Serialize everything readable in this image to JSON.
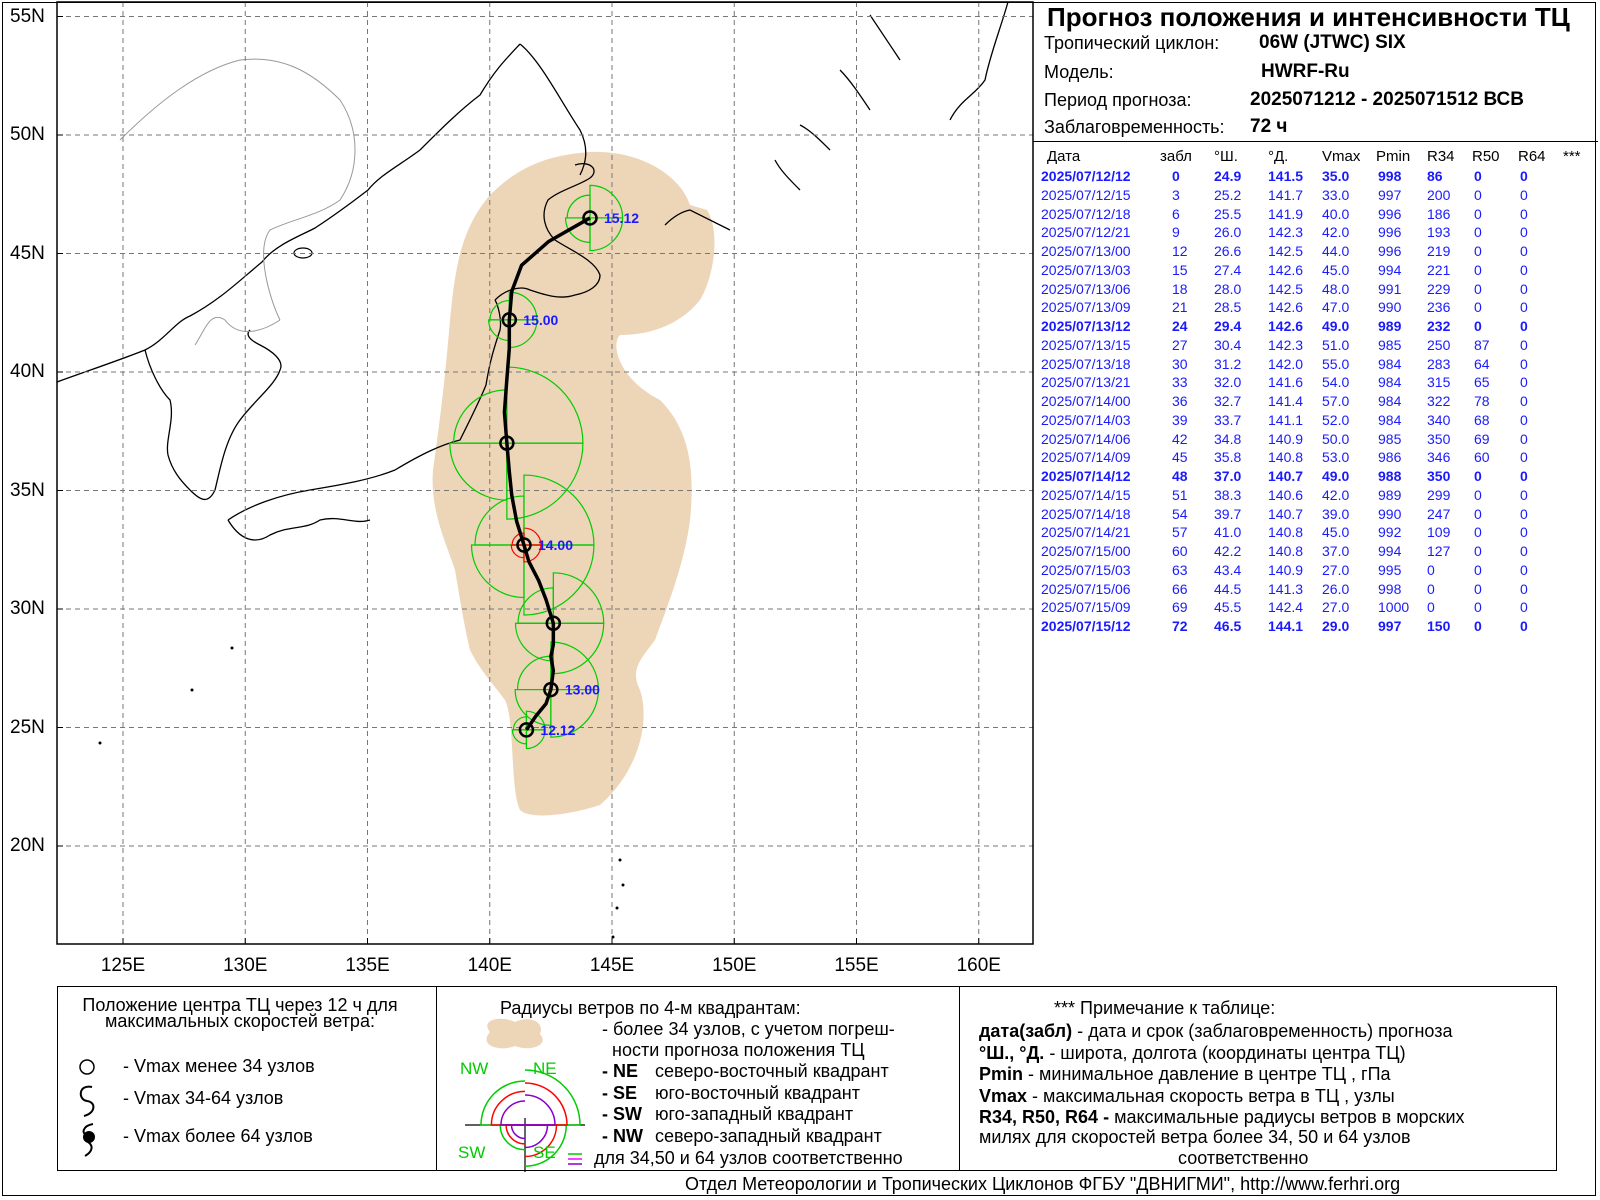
{
  "title": "Прогноз положения и интенсивности ТЦ",
  "info": {
    "cyclone_label": "Тропический циклон:",
    "cyclone_value": "06W (JTWC)  SIX",
    "model_label": "Модель:",
    "model_value": "HWRF-Ru",
    "period_label": "Период прогноза:",
    "period_value": "2025071212 - 2025071512 ВСВ",
    "lead_label": "Заблаговременность:",
    "lead_value": "72 ч"
  },
  "table": {
    "headers": [
      "Дата",
      "забл",
      "°Ш.",
      "°Д.",
      "Vmax",
      "Pmin",
      "R34",
      "R50",
      "R64",
      "***"
    ],
    "rows": [
      [
        "2025/07/12/12",
        "0",
        "24.9",
        "141.5",
        "35.0",
        "998",
        "86",
        "0",
        "0"
      ],
      [
        "2025/07/12/15",
        "3",
        "25.2",
        "141.7",
        "33.0",
        "997",
        "200",
        "0",
        "0"
      ],
      [
        "2025/07/12/18",
        "6",
        "25.5",
        "141.9",
        "40.0",
        "996",
        "186",
        "0",
        "0"
      ],
      [
        "2025/07/12/21",
        "9",
        "26.0",
        "142.3",
        "42.0",
        "996",
        "193",
        "0",
        "0"
      ],
      [
        "2025/07/13/00",
        "12",
        "26.6",
        "142.5",
        "44.0",
        "996",
        "219",
        "0",
        "0"
      ],
      [
        "2025/07/13/03",
        "15",
        "27.4",
        "142.6",
        "45.0",
        "994",
        "221",
        "0",
        "0"
      ],
      [
        "2025/07/13/06",
        "18",
        "28.0",
        "142.5",
        "48.0",
        "991",
        "229",
        "0",
        "0"
      ],
      [
        "2025/07/13/09",
        "21",
        "28.5",
        "142.6",
        "47.0",
        "990",
        "236",
        "0",
        "0"
      ],
      [
        "2025/07/13/12",
        "24",
        "29.4",
        "142.6",
        "49.0",
        "989",
        "232",
        "0",
        "0"
      ],
      [
        "2025/07/13/15",
        "27",
        "30.4",
        "142.3",
        "51.0",
        "985",
        "250",
        "87",
        "0"
      ],
      [
        "2025/07/13/18",
        "30",
        "31.2",
        "142.0",
        "55.0",
        "984",
        "283",
        "64",
        "0"
      ],
      [
        "2025/07/13/21",
        "33",
        "32.0",
        "141.6",
        "54.0",
        "984",
        "315",
        "65",
        "0"
      ],
      [
        "2025/07/14/00",
        "36",
        "32.7",
        "141.4",
        "57.0",
        "984",
        "322",
        "78",
        "0"
      ],
      [
        "2025/07/14/03",
        "39",
        "33.7",
        "141.1",
        "52.0",
        "984",
        "340",
        "68",
        "0"
      ],
      [
        "2025/07/14/06",
        "42",
        "34.8",
        "140.9",
        "50.0",
        "985",
        "350",
        "69",
        "0"
      ],
      [
        "2025/07/14/09",
        "45",
        "35.8",
        "140.8",
        "53.0",
        "986",
        "346",
        "60",
        "0"
      ],
      [
        "2025/07/14/12",
        "48",
        "37.0",
        "140.7",
        "49.0",
        "988",
        "350",
        "0",
        "0"
      ],
      [
        "2025/07/14/15",
        "51",
        "38.3",
        "140.6",
        "42.0",
        "989",
        "299",
        "0",
        "0"
      ],
      [
        "2025/07/14/18",
        "54",
        "39.7",
        "140.7",
        "39.0",
        "990",
        "247",
        "0",
        "0"
      ],
      [
        "2025/07/14/21",
        "57",
        "41.0",
        "140.8",
        "45.0",
        "992",
        "109",
        "0",
        "0"
      ],
      [
        "2025/07/15/00",
        "60",
        "42.2",
        "140.8",
        "37.0",
        "994",
        "127",
        "0",
        "0"
      ],
      [
        "2025/07/15/03",
        "63",
        "43.4",
        "140.9",
        "27.0",
        "995",
        "0",
        "0",
        "0"
      ],
      [
        "2025/07/15/06",
        "66",
        "44.5",
        "141.3",
        "26.0",
        "998",
        "0",
        "0",
        "0"
      ],
      [
        "2025/07/15/09",
        "69",
        "45.5",
        "142.4",
        "27.0",
        "1000",
        "0",
        "0",
        "0"
      ],
      [
        "2025/07/15/12",
        "72",
        "46.5",
        "144.1",
        "29.0",
        "997",
        "150",
        "0",
        "0"
      ]
    ],
    "bold_rows": [
      0,
      8,
      16,
      24
    ]
  },
  "map": {
    "lat_labels": [
      "55N",
      "50N",
      "45N",
      "40N",
      "35N",
      "30N",
      "25N",
      "20N"
    ],
    "lat_values": [
      55,
      50,
      45,
      40,
      35,
      30,
      25,
      20
    ],
    "lon_labels": [
      "125E",
      "130E",
      "135E",
      "140E",
      "145E",
      "150E",
      "155E",
      "160E"
    ],
    "lon_values": [
      125,
      130,
      135,
      140,
      145,
      150,
      155,
      160
    ],
    "point_labels": [
      {
        "text": "12.12",
        "lat": 24.9,
        "lon": 141.5
      },
      {
        "text": "13.00",
        "lat": 26.6,
        "lon": 142.5
      },
      {
        "text": "14.00",
        "lat": 32.7,
        "lon": 141.4
      },
      {
        "text": "15.00",
        "lat": 42.2,
        "lon": 140.8
      },
      {
        "text": "15.12",
        "lat": 46.5,
        "lon": 144.1
      }
    ],
    "colors": {
      "track": "#000000",
      "r34": "#00cc00",
      "r50": "#ff0000",
      "uncertainty": "#edd5b8",
      "labels": "#1a1aff",
      "coast": "#000000",
      "border": "#999999"
    }
  },
  "legend": {
    "col1_title": "Положение центра ТЦ через 12 ч для максимальных скоростей ветра:",
    "col1_items": [
      "- Vmax  менее 34 узлов",
      "- Vmax  34-64 узлов",
      "- Vmax  более 64 узлов"
    ],
    "col2_title": "Радиусы ветров по 4-м квадрантам:",
    "col2_line1": "- более 34 узлов, с учетом погреш-",
    "col2_line2": "ности прогноза положения ТЦ",
    "quads": [
      {
        "code": "- NE",
        "text": "северо-восточный квадрант"
      },
      {
        "code": "- SE",
        "text": "юго-восточный квадрант"
      },
      {
        "code": "- SW",
        "text": "юго-западный квадрант"
      },
      {
        "code": "- NW",
        "text": "северо-западный квадрант"
      }
    ],
    "col2_last": "для 34,50 и 64 узлов соответственно",
    "quad_labels": {
      "nw": "NW",
      "ne": "NE",
      "sw": "SW",
      "se": "SE"
    },
    "col3_title": "*** Примечание к таблице:",
    "notes": [
      {
        "k": "дата(забл)",
        "v": " - дата и срок (заблаговременность) прогноза"
      },
      {
        "k": "°Ш., °Д.",
        "v": " - широта, долгота   (координаты центра ТЦ)"
      },
      {
        "k": "Pmin",
        "v": "  - минимальное давление в центре ТЦ , гПа"
      },
      {
        "k": "Vmax",
        "v": "   -  максимальная скорость ветра в ТЦ , узлы"
      },
      {
        "k": "R34, R50, R64 -",
        "v": " максимальные радиусы ветров в морских"
      }
    ],
    "note_line6": "милях для скоростей ветра более 34, 50 и 64 узлов",
    "note_line7": "соответственно"
  },
  "footer": "Отдел Метеорологии и Тропических Циклонов ФГБУ \"ДВНИГМИ\",  http://www.ferhri.org"
}
